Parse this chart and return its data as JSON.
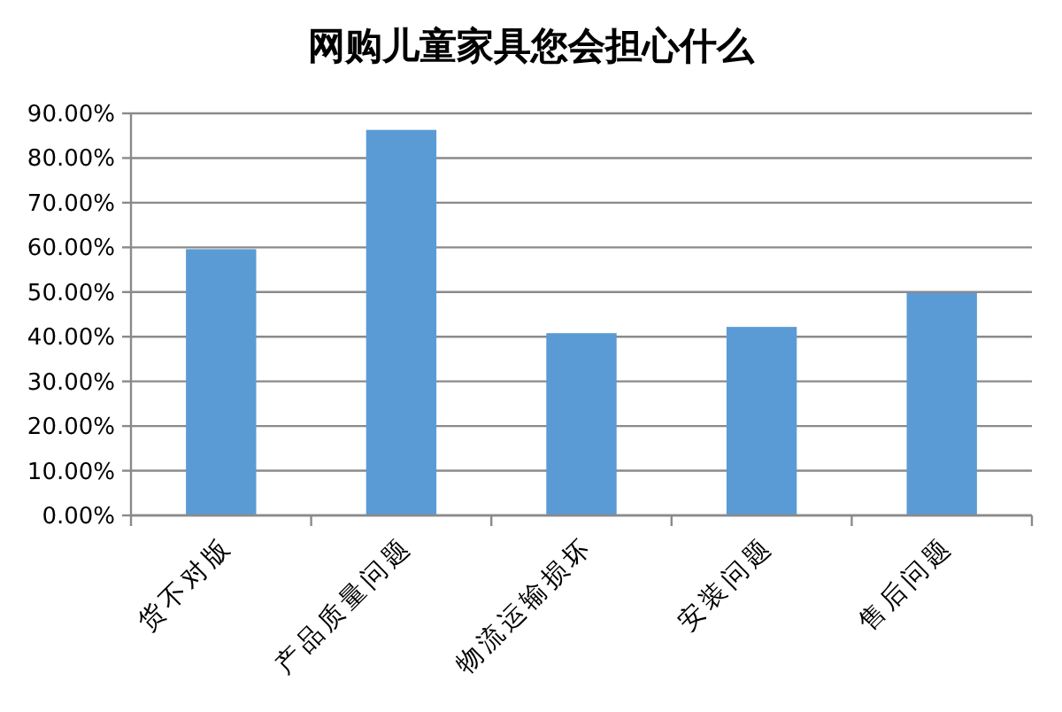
{
  "chart_data": {
    "type": "bar",
    "title": "网购儿童家具您会担心什么",
    "categories": [
      "货不对版",
      "产品质量问题",
      "物流运输损坏",
      "安装问题",
      "售后问题"
    ],
    "values": [
      59.6,
      86.3,
      40.8,
      42.2,
      49.8
    ],
    "color": "#5b9bd5",
    "ylim": [
      0,
      90
    ],
    "yticks": [
      {
        "value": 0,
        "label": "0.00%"
      },
      {
        "value": 10,
        "label": "10.00%"
      },
      {
        "value": 20,
        "label": "20.00%"
      },
      {
        "value": 30,
        "label": "30.00%"
      },
      {
        "value": 40,
        "label": "40.00%"
      },
      {
        "value": 50,
        "label": "50.00%"
      },
      {
        "value": 60,
        "label": "60.00%"
      },
      {
        "value": 70,
        "label": "70.00%"
      },
      {
        "value": 80,
        "label": "80.00%"
      },
      {
        "value": 90,
        "label": "90.00%"
      }
    ],
    "grid": "y"
  }
}
